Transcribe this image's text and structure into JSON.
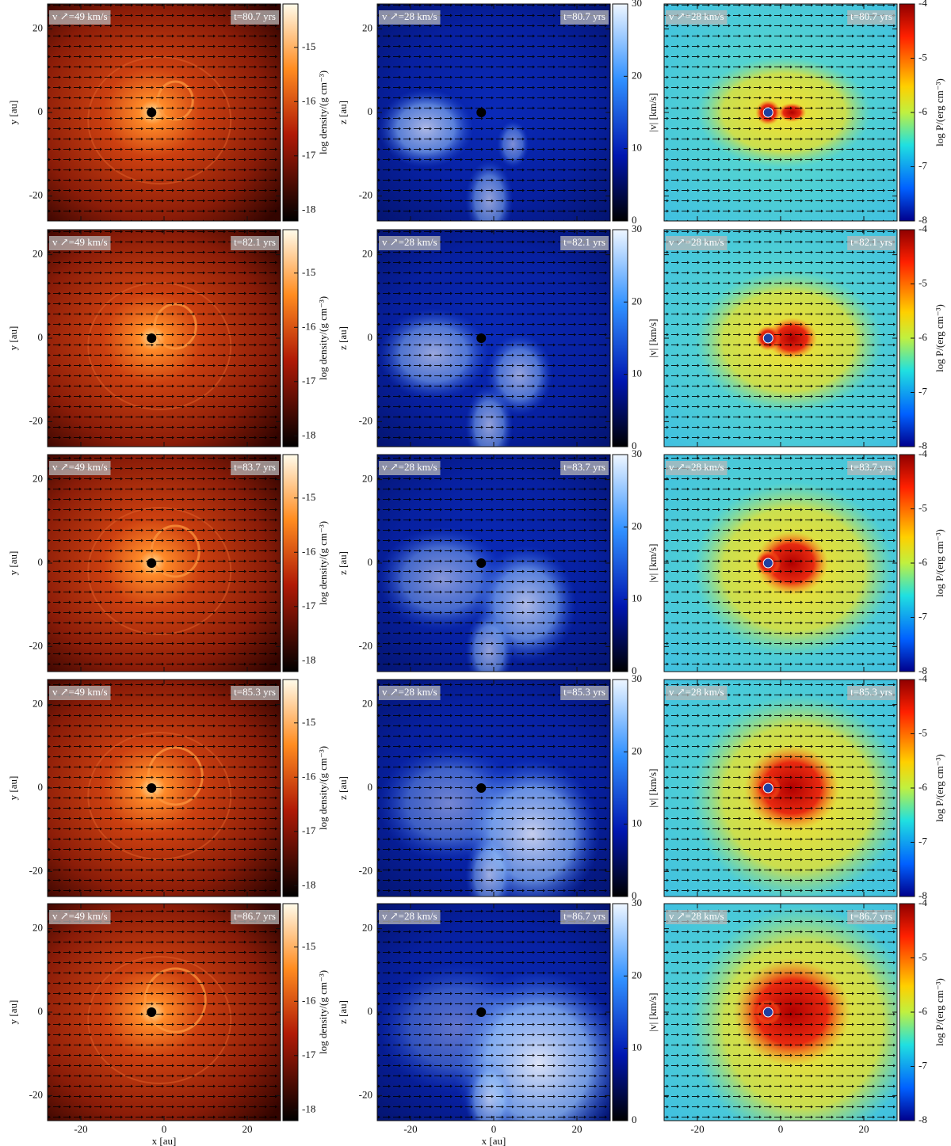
{
  "figure": {
    "x_label": "x [au]",
    "x_range": [
      -28,
      28
    ],
    "x_ticks": [
      -20,
      0,
      20
    ],
    "y_range": [
      -26,
      26
    ],
    "y_ticks": [
      -20,
      0,
      20
    ],
    "times": [
      "t=80.7 yrs",
      "t=82.1 yrs",
      "t=83.7 yrs",
      "t=85.3 yrs",
      "t=86.7 yrs"
    ],
    "columns": [
      {
        "y_label": "y [au]",
        "arrow_scale": "v ↗=49 km/s",
        "colorbar": {
          "label": "log density/(g cm⁻³)",
          "range": [
            -18.2,
            -14.2
          ],
          "ticks": [
            -15,
            -16,
            -17,
            -18
          ]
        }
      },
      {
        "y_label": "z [au]",
        "arrow_scale": "v ↗=28 km/s",
        "colorbar": {
          "label": "|v| [km/s]",
          "range": [
            0,
            30
          ],
          "ticks": [
            30,
            20,
            10,
            0
          ]
        }
      },
      {
        "arrow_scale": "v ↗=28 km/s",
        "colorbar": {
          "label": "log P/(erg cm⁻³)",
          "range": [
            -8,
            -4
          ],
          "ticks": [
            -4,
            -5,
            -6,
            -7,
            -8
          ]
        }
      }
    ]
  }
}
